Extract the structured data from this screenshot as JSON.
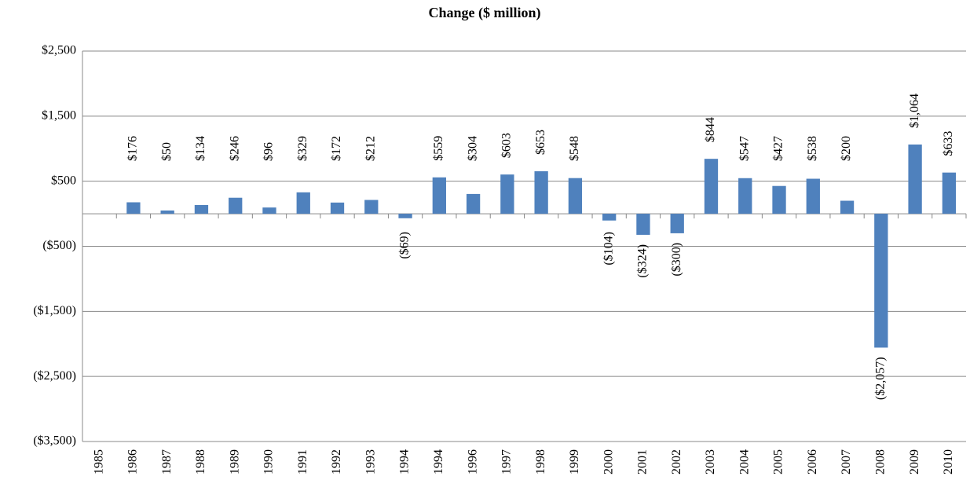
{
  "chart_data": {
    "type": "bar",
    "title": "Change ($ million)",
    "categories": [
      "1985",
      "1986",
      "1987",
      "1988",
      "1989",
      "1990",
      "1991",
      "1992",
      "1993",
      "1994",
      "1994",
      "1996",
      "1997",
      "1998",
      "1999",
      "2000",
      "2001",
      "2002",
      "2003",
      "2004",
      "2005",
      "2006",
      "2007",
      "2008",
      "2009",
      "2010"
    ],
    "values": [
      null,
      176,
      50,
      134,
      246,
      96,
      329,
      172,
      212,
      -69,
      559,
      304,
      603,
      653,
      548,
      -104,
      -324,
      -300,
      844,
      547,
      427,
      538,
      200,
      -2057,
      1064,
      633
    ],
    "value_labels": [
      null,
      "$176",
      "$50",
      "$134",
      "$246",
      "$96",
      "$329",
      "$172",
      "$212",
      "($69)",
      "$559",
      "$304",
      "$603",
      "$653",
      "$548",
      "($104)",
      "($324)",
      "($300)",
      "$844",
      "$547",
      "$427",
      "$538",
      "$200",
      "($2,057)",
      "$1,064",
      "$633"
    ],
    "color": "#4f81bd",
    "negative_label_color": "#ff0000",
    "ylim": [
      -3500,
      2500
    ],
    "yticks": [
      {
        "value": 2500,
        "label": "$2,500"
      },
      {
        "value": 1500,
        "label": "$1,500"
      },
      {
        "value": 500,
        "label": "$500"
      },
      {
        "value": -500,
        "label": "($500)"
      },
      {
        "value": -1500,
        "label": "($1,500)"
      },
      {
        "value": -2500,
        "label": "($2,500)"
      },
      {
        "value": -3500,
        "label": "($3,500)"
      }
    ],
    "grid": true
  }
}
